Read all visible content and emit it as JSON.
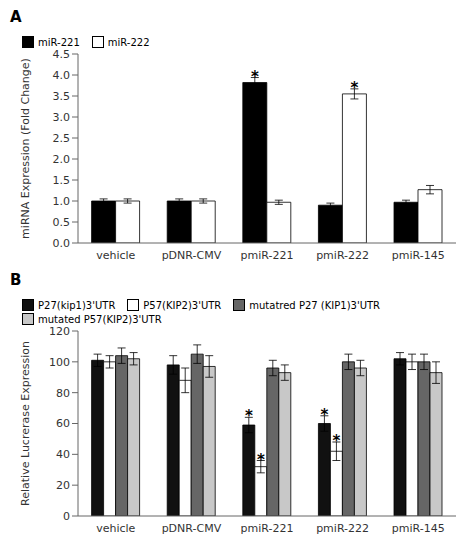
{
  "chart_data": [
    {
      "type": "bar",
      "title": "A",
      "categories": [
        "vehicle",
        "pDNR-CMV",
        "pmiR-221",
        "pmiR-222",
        "pmiR-145"
      ],
      "series": [
        {
          "name": "miR-221",
          "color": "#000000",
          "values": [
            1.0,
            1.0,
            3.82,
            0.9,
            0.97
          ],
          "errors": [
            0.05,
            0.05,
            0.12,
            0.05,
            0.05
          ]
        },
        {
          "name": "miR-222",
          "color": "#ffffff",
          "values": [
            1.0,
            1.0,
            0.97,
            3.55,
            1.27
          ],
          "errors": [
            0.05,
            0.05,
            0.05,
            0.12,
            0.1
          ]
        }
      ],
      "ylabel": "miRNA Expression (Fold Change)",
      "ylim": [
        0,
        4.5
      ],
      "yticks": [
        {
          "value": 0,
          "label": "0.0"
        },
        0.5,
        {
          "value": 1,
          "label": "1.0"
        },
        1.5,
        {
          "value": 2,
          "label": "2.0"
        },
        2.5,
        {
          "value": 3,
          "label": "3.0"
        },
        3.5,
        {
          "value": 4,
          "label": "4.0"
        },
        4.5
      ],
      "legend": "upper left",
      "annotations": [
        {
          "text": "*",
          "series": "miR-221",
          "category": "pmiR-221"
        },
        {
          "text": "*",
          "series": "miR-222",
          "category": "pmiR-222"
        }
      ]
    },
    {
      "type": "bar",
      "title": "B",
      "categories": [
        "vehicle",
        "pDNR-CMV",
        "pmiR-221",
        "pmiR-222",
        "pmiR-145"
      ],
      "series": [
        {
          "name": "P27(kip1)3'UTR",
          "color": "#111111",
          "values": [
            101,
            98,
            59,
            60,
            102
          ],
          "errors": [
            4,
            6,
            5,
            5,
            4
          ]
        },
        {
          "name": "P57(KIP2)3'UTR",
          "color": "#ffffff",
          "values": [
            100,
            88,
            32,
            42,
            100
          ],
          "errors": [
            4,
            8,
            4,
            6,
            5
          ]
        },
        {
          "name": "mutatred P27 (KIP1)3'UTR",
          "color": "#666666",
          "values": [
            104,
            105,
            96,
            100,
            100
          ],
          "errors": [
            5,
            6,
            5,
            5,
            5
          ]
        },
        {
          "name": "mutated P57(KIP2)3'UTR",
          "color": "#c8c8c8",
          "values": [
            102,
            97,
            93,
            96,
            93
          ],
          "errors": [
            4,
            7,
            5,
            5,
            7
          ]
        }
      ],
      "ylabel": "Relative Lucrerase Expression",
      "ylim": [
        0,
        120
      ],
      "yticks": [
        0,
        20,
        40,
        60,
        80,
        100,
        120
      ],
      "legend": "upper left",
      "annotations": [
        {
          "text": "*",
          "series": "P27(kip1)3'UTR",
          "category": "pmiR-221"
        },
        {
          "text": "*",
          "series": "P27(kip1)3'UTR",
          "category": "pmiR-222"
        },
        {
          "text": "*",
          "series": "P57(KIP2)3'UTR",
          "category": "pmiR-221"
        },
        {
          "text": "*",
          "series": "P57(KIP2)3'UTR",
          "category": "pmiR-222"
        }
      ]
    }
  ]
}
